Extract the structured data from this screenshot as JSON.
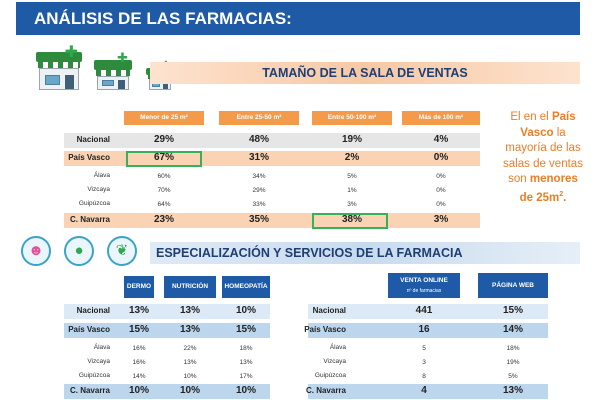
{
  "header": {
    "title": "ANÁLISIS DE LAS FARMACIAS:"
  },
  "section1": {
    "title": "TAMAÑO DE LA SALA DE VENTAS",
    "columns": [
      "Menor de 25 m²",
      "Entre 25-50 m²",
      "Entre 50-100 m²",
      "Más de 100 m²"
    ],
    "rows": [
      {
        "label": "Nacional",
        "values": [
          "29%",
          "48%",
          "19%",
          "4%"
        ]
      },
      {
        "label": "País Vasco",
        "values": [
          "67%",
          "31%",
          "2%",
          "0%"
        ]
      },
      {
        "label": "Álava",
        "values": [
          "60%",
          "34%",
          "5%",
          "0%"
        ]
      },
      {
        "label": "Vizcaya",
        "values": [
          "70%",
          "29%",
          "1%",
          "0%"
        ]
      },
      {
        "label": "Guipúzcoa",
        "values": [
          "64%",
          "33%",
          "3%",
          "0%"
        ]
      },
      {
        "label": "C. Navarra",
        "values": [
          "23%",
          "35%",
          "38%",
          "3%"
        ]
      }
    ],
    "note": {
      "line1": "El en el ",
      "bold1": "País Vasco",
      "line2": " la mayoría de las salas de ventas son ",
      "bold2": "menores de 25m².",
      "bold2_text": "menores de",
      "bold2_unit": "25m",
      "bold2_sup": "2",
      "bold2_end": "."
    }
  },
  "section2": {
    "title": "ESPECIALIZACIÓN Y SERVICIOS DE LA FARMACIA",
    "columns": [
      "DERMO",
      "NUTRICIÓN",
      "HOMEOPATÍA"
    ],
    "columns_right": [
      "VENTA ONLINE",
      "PÁGINA WEB"
    ],
    "columns_right_sub": "nº de farmacias",
    "rows": [
      {
        "label": "Nacional",
        "values": [
          "13%",
          "13%",
          "10%"
        ],
        "right": [
          "441",
          "15%"
        ]
      },
      {
        "label": "País Vasco",
        "values": [
          "15%",
          "13%",
          "15%"
        ],
        "right": [
          "16",
          "14%"
        ]
      },
      {
        "label": "Álava",
        "values": [
          "16%",
          "22%",
          "18%"
        ],
        "right": [
          "5",
          "18%"
        ]
      },
      {
        "label": "Vizcaya",
        "values": [
          "16%",
          "13%",
          "13%"
        ],
        "right": [
          "3",
          "19%"
        ]
      },
      {
        "label": "Guipúzcoa",
        "values": [
          "14%",
          "10%",
          "17%"
        ],
        "right": [
          "8",
          "5%"
        ]
      },
      {
        "label": "C. Navarra",
        "values": [
          "10%",
          "10%",
          "10%"
        ],
        "right": [
          "4",
          "13%"
        ]
      }
    ]
  },
  "icons": [
    "pharmacy-building-icon",
    "face-icon",
    "apple-icon",
    "herb-icon"
  ],
  "colors": {
    "header": "#1f5aa6",
    "orange": "#f39a4b",
    "highlight": "#34b15a",
    "note": "#ee7c24"
  }
}
